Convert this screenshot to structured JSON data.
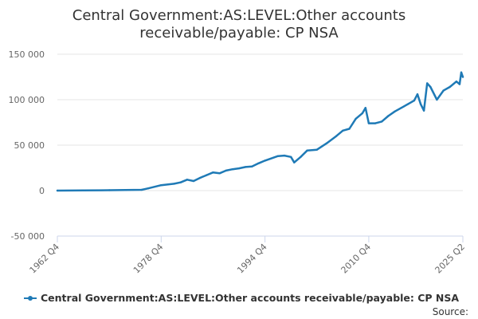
{
  "chart_data": {
    "type": "line",
    "title": [
      "Central Government:AS:LEVEL:Other accounts",
      "receivable/payable: CP NSA"
    ],
    "xlabel": "",
    "ylabel": "",
    "x_range": [
      "1962 Q4",
      "2025 Q2"
    ],
    "x_ticks": [
      "1962 Q4",
      "1978 Q4",
      "1994 Q4",
      "2010 Q4",
      "2025 Q2"
    ],
    "y_ticks": [
      "150 000",
      "100 000",
      "50 000",
      "0",
      "-50 000"
    ],
    "ylim": [
      -50000,
      150000
    ],
    "grid": true,
    "legend": "bottom",
    "color": "#1f7ab6",
    "source": "Source:",
    "series": [
      {
        "name": "Central Government:AS:LEVEL:Other accounts receivable/payable: CP NSA",
        "points": [
          [
            "1962 Q4",
            0
          ],
          [
            "1966 Q4",
            200
          ],
          [
            "1970 Q4",
            400
          ],
          [
            "1975 Q4",
            900
          ],
          [
            "1976 Q4",
            2500
          ],
          [
            "1978 Q4",
            6000
          ],
          [
            "1980 Q4",
            7500
          ],
          [
            "1981 Q4",
            9000
          ],
          [
            "1982 Q4",
            12000
          ],
          [
            "1983 Q4",
            10500
          ],
          [
            "1984 Q4",
            14000
          ],
          [
            "1985 Q4",
            17000
          ],
          [
            "1986 Q4",
            20000
          ],
          [
            "1987 Q4",
            19000
          ],
          [
            "1988 Q4",
            22000
          ],
          [
            "1989 Q4",
            23500
          ],
          [
            "1990 Q4",
            24500
          ],
          [
            "1991 Q4",
            26000
          ],
          [
            "1992 Q4",
            26500
          ],
          [
            "1993 Q4",
            30000
          ],
          [
            "1994 Q4",
            33000
          ],
          [
            "1996 Q4",
            38000
          ],
          [
            "1997 Q4",
            38500
          ],
          [
            "1998 Q4",
            37000
          ],
          [
            "1999 Q2",
            31000
          ],
          [
            "2000 Q2",
            37000
          ],
          [
            "2001 Q2",
            44000
          ],
          [
            "2002 Q4",
            45000
          ],
          [
            "2004 Q2",
            52000
          ],
          [
            "2005 Q4",
            60000
          ],
          [
            "2006 Q4",
            66000
          ],
          [
            "2007 Q4",
            68000
          ],
          [
            "2008 Q4",
            79000
          ],
          [
            "2009 Q4",
            85000
          ],
          [
            "2010 Q2",
            91000
          ],
          [
            "2010 Q4",
            74000
          ],
          [
            "2011 Q4",
            74000
          ],
          [
            "2012 Q4",
            76000
          ],
          [
            "2013 Q4",
            82000
          ],
          [
            "2014 Q4",
            87000
          ],
          [
            "2015 Q4",
            91000
          ],
          [
            "2016 Q4",
            95000
          ],
          [
            "2017 Q4",
            99000
          ],
          [
            "2018 Q2",
            106000
          ],
          [
            "2018 Q4",
            95000
          ],
          [
            "2019 Q2",
            88000
          ],
          [
            "2019 Q4",
            118000
          ],
          [
            "2020 Q2",
            114000
          ],
          [
            "2021 Q2",
            100000
          ],
          [
            "2022 Q2",
            110000
          ],
          [
            "2023 Q2",
            114000
          ],
          [
            "2024 Q2",
            120000
          ],
          [
            "2024 Q4",
            117000
          ],
          [
            "2025 Q1",
            130000
          ],
          [
            "2025 Q2",
            125000
          ]
        ]
      }
    ]
  }
}
